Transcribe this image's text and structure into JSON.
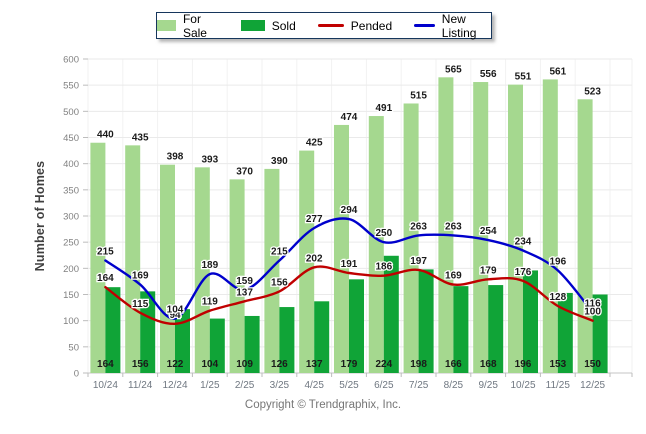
{
  "chart_data": {
    "type": "bar",
    "subtype": "combo-bar-line",
    "title": "",
    "xlabel": "",
    "ylabel": "Number of Homes",
    "ylim": [
      0,
      600
    ],
    "ytick_step": 50,
    "grid": true,
    "legend_position": "top",
    "categories": [
      "10/24",
      "11/24",
      "12/24",
      "1/25",
      "2/25",
      "3/25",
      "4/25",
      "5/25",
      "6/25",
      "7/25",
      "8/25",
      "9/25",
      "10/25",
      "11/25",
      "12/25"
    ],
    "series": [
      {
        "name": "For Sale",
        "type": "bar",
        "color": "#a5d88f",
        "values": [
          440,
          435,
          398,
          393,
          370,
          390,
          425,
          474,
          491,
          515,
          565,
          556,
          551,
          561,
          523
        ]
      },
      {
        "name": "Sold",
        "type": "bar",
        "color": "#10a437",
        "values": [
          164,
          156,
          122,
          104,
          109,
          126,
          137,
          179,
          224,
          198,
          166,
          168,
          196,
          153,
          150
        ]
      },
      {
        "name": "Pended",
        "type": "line",
        "color": "#c00000",
        "values": [
          164,
          115,
          94,
          119,
          137,
          156,
          202,
          191,
          186,
          197,
          169,
          179,
          176,
          128,
          100
        ]
      },
      {
        "name": "New Listing",
        "type": "line",
        "color": "#0000cc",
        "values": [
          215,
          169,
          104,
          189,
          159,
          215,
          277,
          294,
          250,
          263,
          263,
          254,
          234,
          196,
          116
        ]
      }
    ]
  },
  "footer": {
    "copyright": "Copyright © Trendgraphix, Inc."
  }
}
